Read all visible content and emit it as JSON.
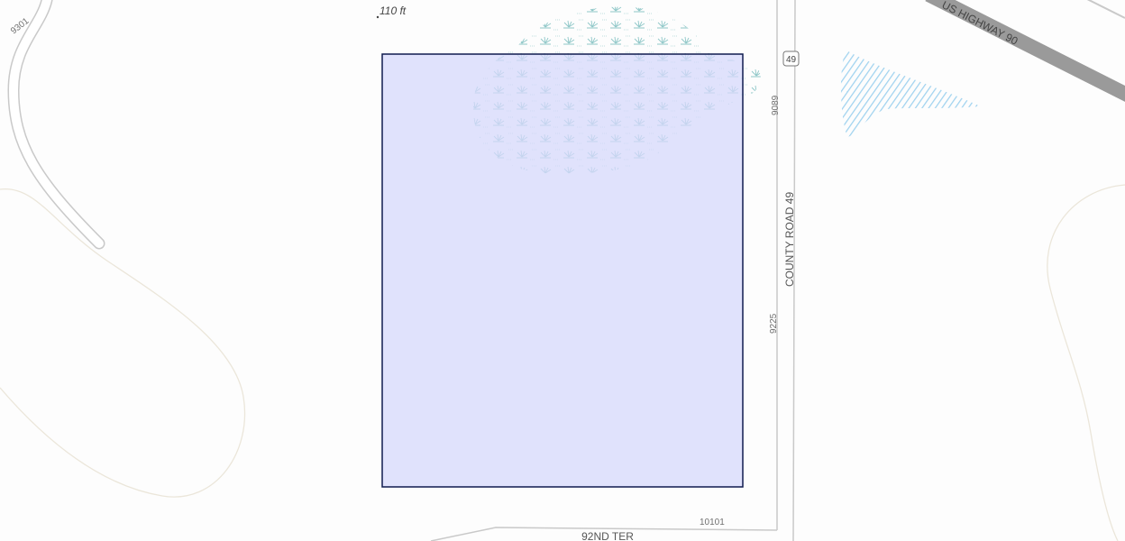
{
  "map": {
    "scale_label": "110 ft",
    "road_labels": {
      "local_road": "9301",
      "highway_shield": "49",
      "county_road": "COUNTY ROAD 49",
      "us_highway": "US HIGHWAY 90",
      "street": "92ND TER"
    },
    "address_labels": [
      "9089",
      "9225",
      "10101"
    ]
  }
}
